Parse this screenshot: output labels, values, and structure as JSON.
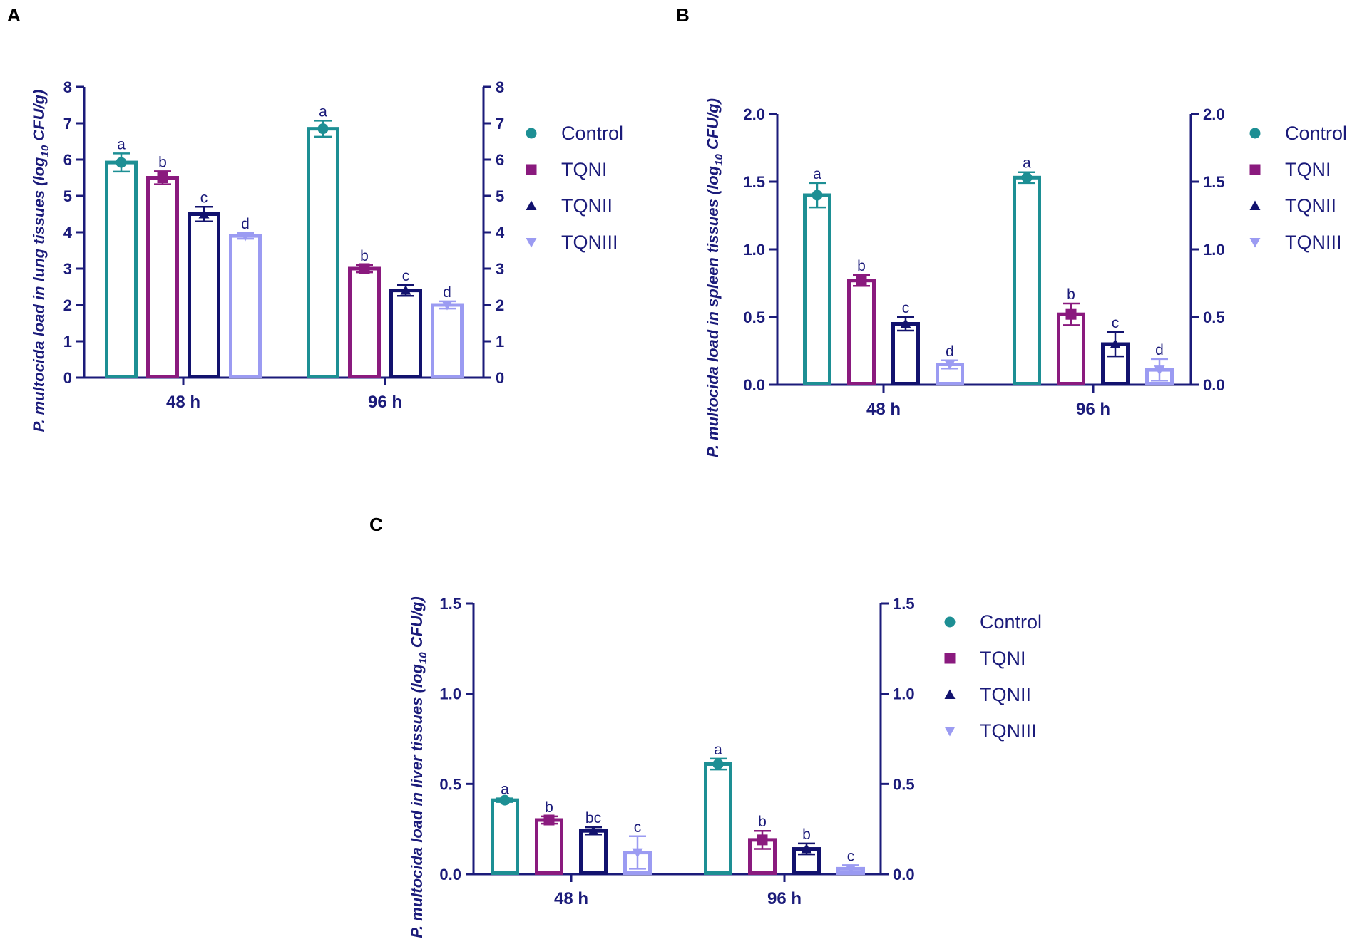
{
  "figure": {
    "panels": [
      "A",
      "B",
      "C"
    ]
  },
  "colors": {
    "axis": "#1b1b7a",
    "label": "#1b1b7a",
    "Control": "#1d8f94",
    "TQNI": "#8a1a7e",
    "TQNII": "#12126e",
    "TQNIII": "#9b9bf2"
  },
  "chart_data": [
    {
      "panel": "A",
      "type": "bar",
      "title": "",
      "xlabel": "",
      "ylabel_prefix": "P. multocida load in lung tissues (log",
      "ylabel_sub": "10",
      "ylabel_suffix": " CFU/g)",
      "categories": [
        "48 h",
        "96 h"
      ],
      "ylim": [
        0,
        8
      ],
      "yticks": [
        "0",
        "1",
        "2",
        "3",
        "4",
        "5",
        "6",
        "7",
        "8"
      ],
      "series": [
        {
          "name": "Control",
          "marker": "circle",
          "values": [
            5.92,
            6.85
          ],
          "errors": [
            0.25,
            0.22
          ],
          "letters": [
            "a",
            "a"
          ]
        },
        {
          "name": "TQNI",
          "marker": "square",
          "values": [
            5.5,
            3.0
          ],
          "errors": [
            0.18,
            0.1
          ],
          "letters": [
            "b",
            "b"
          ]
        },
        {
          "name": "TQNII",
          "marker": "triangle-up",
          "values": [
            4.5,
            2.4
          ],
          "errors": [
            0.2,
            0.15
          ],
          "letters": [
            "c",
            "c"
          ]
        },
        {
          "name": "TQNIII",
          "marker": "triangle-down",
          "values": [
            3.9,
            2.0
          ],
          "errors": [
            0.08,
            0.1
          ],
          "letters": [
            "d",
            "d"
          ]
        }
      ]
    },
    {
      "panel": "B",
      "type": "bar",
      "title": "",
      "xlabel": "",
      "ylabel_prefix": "P. multocida load in spleen tissues (log",
      "ylabel_sub": "10",
      "ylabel_suffix": " CFU/g)",
      "categories": [
        "48 h",
        "96 h"
      ],
      "ylim": [
        0,
        2.0
      ],
      "yticks": [
        "0.0",
        "0.5",
        "1.0",
        "1.5",
        "2.0"
      ],
      "series": [
        {
          "name": "Control",
          "marker": "circle",
          "values": [
            1.4,
            1.53
          ],
          "errors": [
            0.09,
            0.04
          ],
          "letters": [
            "a",
            "a"
          ]
        },
        {
          "name": "TQNI",
          "marker": "square",
          "values": [
            0.77,
            0.52
          ],
          "errors": [
            0.04,
            0.08
          ],
          "letters": [
            "b",
            "b"
          ]
        },
        {
          "name": "TQNII",
          "marker": "triangle-up",
          "values": [
            0.45,
            0.3
          ],
          "errors": [
            0.05,
            0.09
          ],
          "letters": [
            "c",
            "c"
          ]
        },
        {
          "name": "TQNIII",
          "marker": "triangle-down",
          "values": [
            0.15,
            0.11
          ],
          "errors": [
            0.03,
            0.08
          ],
          "letters": [
            "d",
            "d"
          ]
        }
      ]
    },
    {
      "panel": "C",
      "type": "bar",
      "title": "",
      "xlabel": "",
      "ylabel_prefix": "P. multocida load in liver tissues (log",
      "ylabel_sub": "10",
      "ylabel_suffix": " CFU/g)",
      "categories": [
        "48 h",
        "96 h"
      ],
      "ylim": [
        0,
        1.5
      ],
      "yticks": [
        "0.0",
        "0.5",
        "1.0",
        "1.5"
      ],
      "series": [
        {
          "name": "Control",
          "marker": "circle",
          "values": [
            0.41,
            0.61
          ],
          "errors": [
            0.01,
            0.03
          ],
          "letters": [
            "a",
            "a"
          ]
        },
        {
          "name": "TQNI",
          "marker": "square",
          "values": [
            0.3,
            0.19
          ],
          "errors": [
            0.02,
            0.05
          ],
          "letters": [
            "b",
            "b"
          ]
        },
        {
          "name": "TQNII",
          "marker": "triangle-up",
          "values": [
            0.24,
            0.14
          ],
          "errors": [
            0.02,
            0.03
          ],
          "letters": [
            "bc",
            "b"
          ]
        },
        {
          "name": "TQNIII",
          "marker": "triangle-down",
          "values": [
            0.12,
            0.03
          ],
          "errors": [
            0.09,
            0.02
          ],
          "letters": [
            "c",
            "c"
          ]
        }
      ]
    }
  ]
}
